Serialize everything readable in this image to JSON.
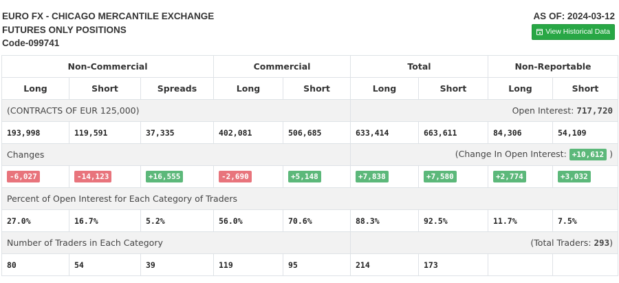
{
  "header": {
    "title_line1": "EURO FX - CHICAGO MERCANTILE EXCHANGE",
    "title_line2": "FUTURES ONLY POSITIONS",
    "code": "Code-099741",
    "as_of": "AS OF: 2024-03-12",
    "historical_button": "View Historical Data"
  },
  "groups": [
    "Non-Commercial",
    "Commercial",
    "Total",
    "Non-Reportable"
  ],
  "subheaders": [
    "Long",
    "Short",
    "Spreads",
    "Long",
    "Short",
    "Long",
    "Short",
    "Long",
    "Short"
  ],
  "contracts": {
    "label": "(CONTRACTS OF EUR 125,000)",
    "open_interest_label": "Open Interest:",
    "open_interest_value": "717,720",
    "values": [
      "193,998",
      "119,591",
      "37,335",
      "402,081",
      "506,685",
      "633,414",
      "663,611",
      "84,306",
      "54,109"
    ]
  },
  "changes": {
    "label": "Changes",
    "oi_change_label": "(Change In Open Interest:",
    "oi_change_value": "+10,612",
    "oi_change_close": ")",
    "values": [
      "-6,027",
      "-14,123",
      "+16,555",
      "-2,690",
      "+5,148",
      "+7,838",
      "+7,580",
      "+2,774",
      "+3,032"
    ]
  },
  "percent": {
    "label": "Percent of Open Interest for Each Category of Traders",
    "values": [
      "27.0%",
      "16.7%",
      "5.2%",
      "56.0%",
      "70.6%",
      "88.3%",
      "92.5%",
      "11.7%",
      "7.5%"
    ]
  },
  "traders": {
    "label": "Number of Traders in Each Category",
    "total_label": "(Total Traders:",
    "total_value": "293",
    "total_close": ")",
    "values": [
      "80",
      "54",
      "39",
      "119",
      "95",
      "214",
      "173",
      "",
      ""
    ]
  },
  "colors": {
    "positive": "#5cb87a",
    "negative": "#e8747c",
    "button": "#28a745"
  }
}
